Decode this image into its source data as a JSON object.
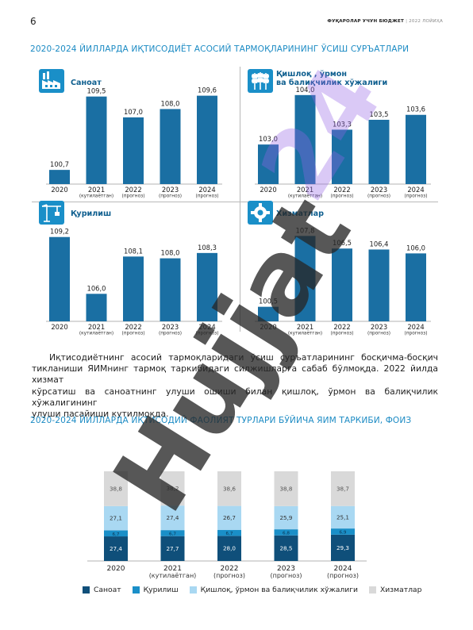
{
  "page": {
    "number": "6",
    "header_bold": "ФУҚАРОЛАР УЧУН БЮДЖЕТ",
    "header_sep": "|",
    "header_year": "2022 ЛОЙИҲА",
    "section1_title": "2020-2024 ЙИЛЛАРДА ИҚТИСОДИЁТ АСОСИЙ ТАРМОҚЛАРИНИНГ ЎСИШ СУРЪАТЛАРИ",
    "section2_title": "2020-2024 ЙИЛЛАРДА ИҚТИСОДИЙ ФАОЛИЯТ ТУРЛАРИ БЎЙИЧА ЯИМ ТАРКИБИ, ФОИЗ",
    "paragraph_lines": [
      "Иқтисодиётнинг асосий тармоқларидаги ўсиш суръатларининг босқичма-босқич",
      "тикланиши ЯИМнинг тармоқ таркибидаги силжишларга сабаб бўлмоқда. 2022 йилда хизмат",
      "кўрсатиш ва саноатнинг улуши ошиши билан қишлоқ, ўрмон ва балиқчилик хўжалигининг",
      "улуши пасайиши кутилмоқда."
    ],
    "watermark": "Hujjat24",
    "icons": {
      "industry": "factory-icon",
      "agriculture": "wheat-icon",
      "construction": "crane-icon",
      "services": "gear-icon"
    },
    "colors": {
      "bar": "#1a6fa3",
      "stack": [
        "#0f4f7a",
        "#1a8fc8",
        "#a9d8f2",
        "#d9d9d9"
      ],
      "title": "#1c8bc4"
    }
  },
  "chart_data": [
    {
      "type": "bar",
      "title": "Саноат",
      "categories": [
        "2020",
        "2021",
        "2022",
        "2023",
        "2024"
      ],
      "sublabels": [
        "",
        "(кутилаётган)",
        "(прогноз)",
        "(прогноз)",
        "(прогноз)"
      ],
      "values": [
        100.7,
        109.5,
        107.0,
        108.0,
        109.6
      ],
      "value_labels": [
        "100,7",
        "109,5",
        "107,0",
        "108,0",
        "109,6"
      ]
    },
    {
      "type": "bar",
      "title": "Қишлоқ , ўрмон ва балиқчилик хўжалиги",
      "title_lines": [
        "Қишлоқ , ўрмон",
        "ва балиқчилик хўжалиги"
      ],
      "categories": [
        "2020",
        "2021",
        "2022",
        "2023",
        "2024"
      ],
      "sublabels": [
        "",
        "(кутилаётган)",
        "(прогноз)",
        "(прогноз)",
        "(прогноз)"
      ],
      "values": [
        103.0,
        104.0,
        103.3,
        103.5,
        103.6
      ],
      "value_labels": [
        "103,0",
        "104,0",
        "103,3",
        "103,5",
        "103,6"
      ]
    },
    {
      "type": "bar",
      "title": "Қурилиш",
      "categories": [
        "2020",
        "2021",
        "2022",
        "2023",
        "2024"
      ],
      "sublabels": [
        "",
        "(кутилаётган)",
        "(прогноз)",
        "(прогноз)",
        "(прогноз)"
      ],
      "values": [
        109.2,
        106.0,
        108.1,
        108.0,
        108.3
      ],
      "value_labels": [
        "109,2",
        "106,0",
        "108,1",
        "108,0",
        "108,3"
      ]
    },
    {
      "type": "bar",
      "title": "Хизматлар",
      "categories": [
        "2020",
        "2021",
        "2022",
        "2023",
        "2024"
      ],
      "sublabels": [
        "",
        "(кутилаётган)",
        "(прогноз)",
        "(прогноз)",
        "(прогноз)"
      ],
      "values": [
        100.5,
        107.8,
        106.5,
        106.4,
        106.0
      ],
      "value_labels": [
        "100,5",
        "107,8",
        "106,5",
        "106,4",
        "106,0"
      ]
    },
    {
      "type": "bar",
      "stacked": true,
      "categories": [
        "2020",
        "2021",
        "2022",
        "2023",
        "2024"
      ],
      "sublabels": [
        "",
        "(кутилаётган)",
        "(прогноз)",
        "(прогноз)",
        "(прогноз)"
      ],
      "series": [
        {
          "name": "Саноат",
          "values": [
            27.4,
            27.7,
            28.0,
            28.5,
            29.3
          ],
          "labels": [
            "27,4",
            "27,7",
            "28,0",
            "28,5",
            "29,3"
          ]
        },
        {
          "name": "Қурилиш",
          "values": [
            6.7,
            6.7,
            6.7,
            6.8,
            6.9
          ],
          "labels": [
            "6,7",
            "6,7",
            "6,7",
            "6,8",
            "6,9"
          ]
        },
        {
          "name": "Қишлоқ, ўрмон ва балиқчилик хўжалиги",
          "values": [
            27.1,
            27.4,
            26.7,
            25.9,
            25.1
          ],
          "labels": [
            "27,1",
            "27,4",
            "26,7",
            "25,9",
            "25,1"
          ]
        },
        {
          "name": "Хизматлар",
          "values": [
            38.8,
            38.2,
            38.6,
            38.8,
            38.7
          ],
          "labels": [
            "38,8",
            "38,2",
            "38,6",
            "38,8",
            "38,7"
          ]
        }
      ],
      "legend_position": "bottom"
    }
  ]
}
